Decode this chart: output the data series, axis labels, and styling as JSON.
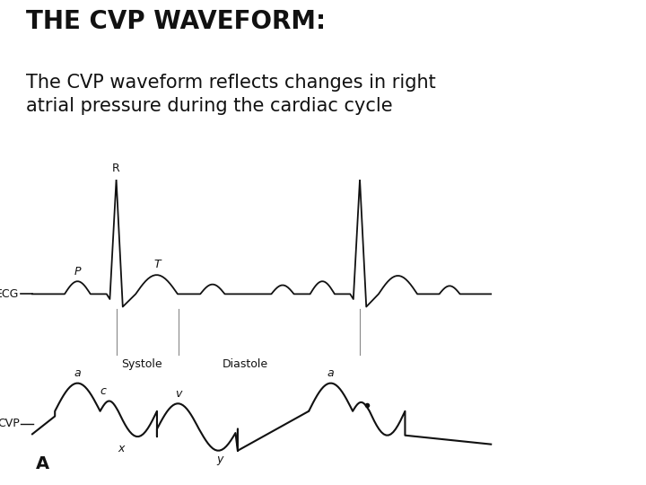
{
  "title_bold": "THE CVP WAVEFORM:",
  "subtitle": "The CVP waveform reflects changes in right\natrial pressure during the cardiac cycle",
  "title_fontsize": 20,
  "subtitle_fontsize": 15,
  "bg_color": "#f5f0d5",
  "white_bg": "#ffffff",
  "line_color": "#111111",
  "label_color": "#111111",
  "bottom_label_A": "A",
  "ecg_baseline": 6.0,
  "cvp_baseline": 2.0,
  "xlim": [
    0,
    10
  ],
  "ylim": [
    0,
    12
  ]
}
